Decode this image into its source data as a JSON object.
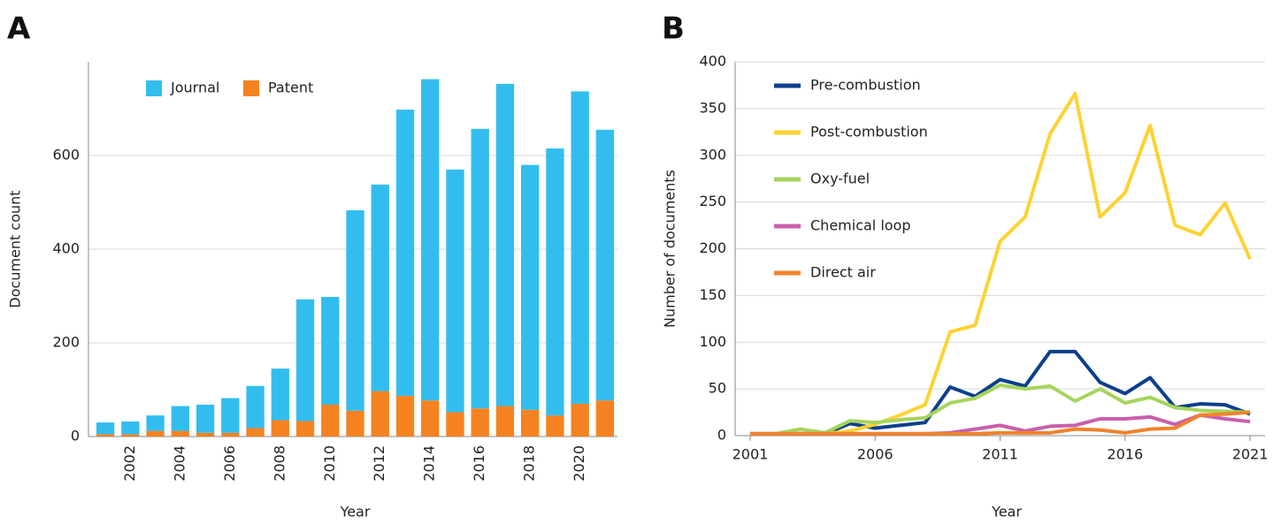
{
  "chart_data": [
    {
      "type": "bar",
      "panel": "A",
      "stacked": true,
      "xlabel": "Year",
      "ylabel": "Document count",
      "categories": [
        null,
        "2002",
        null,
        "2004",
        null,
        "2006",
        null,
        "2008",
        null,
        "2010",
        null,
        "2012",
        null,
        "2014",
        null,
        "2016",
        null,
        "2018",
        null,
        "2020",
        null
      ],
      "series": [
        {
          "name": "Journal",
          "color": "#33bdef",
          "values": [
            25,
            27,
            33,
            53,
            60,
            74,
            90,
            110,
            260,
            230,
            428,
            441,
            611,
            686,
            518,
            597,
            688,
            523,
            570,
            667,
            578
          ]
        },
        {
          "name": "Patent",
          "color": "#f58220",
          "values": [
            5,
            5,
            12,
            12,
            8,
            8,
            18,
            35,
            33,
            68,
            55,
            97,
            87,
            77,
            52,
            60,
            65,
            57,
            45,
            70,
            77
          ]
        }
      ],
      "ylim": [
        0,
        800
      ],
      "yticks": [
        0,
        200,
        400,
        600
      ],
      "grid": true,
      "legend": "upper left"
    },
    {
      "type": "line",
      "panel": "B",
      "xlabel": "Year",
      "ylabel": "Number of documents",
      "x": [
        2001,
        2002,
        2003,
        2004,
        2005,
        2006,
        2007,
        2008,
        2009,
        2010,
        2011,
        2012,
        2013,
        2014,
        2015,
        2016,
        2017,
        2018,
        2019,
        2020,
        2021
      ],
      "series": [
        {
          "name": "Pre-combustion",
          "color": "#0c3f8c",
          "values": [
            2,
            2,
            2,
            2,
            13,
            8,
            11,
            14,
            52,
            42,
            60,
            53,
            90,
            90,
            57,
            45,
            62,
            30,
            34,
            33,
            23
          ]
        },
        {
          "name": "Post-combustion",
          "color": "#fdd233",
          "values": [
            2,
            2,
            2,
            2,
            5,
            12,
            22,
            33,
            111,
            118,
            208,
            234,
            323,
            366,
            234,
            260,
            332,
            225,
            215,
            249,
            189
          ]
        },
        {
          "name": "Oxy-fuel",
          "color": "#a6d45c",
          "values": [
            2,
            2,
            7,
            3,
            16,
            14,
            17,
            19,
            35,
            40,
            54,
            50,
            53,
            37,
            50,
            35,
            41,
            30,
            27,
            26,
            25
          ]
        },
        {
          "name": "Chemical loop",
          "color": "#c95fac",
          "values": [
            2,
            2,
            2,
            2,
            2,
            2,
            2,
            2,
            3,
            7,
            11,
            5,
            10,
            11,
            18,
            18,
            20,
            12,
            22,
            18,
            15
          ]
        },
        {
          "name": "Direct air",
          "color": "#f0822a",
          "values": [
            2,
            2,
            2,
            2,
            2,
            2,
            2,
            2,
            2,
            2,
            3,
            3,
            3,
            7,
            6,
            3,
            7,
            8,
            22,
            23,
            25
          ]
        }
      ],
      "xlim": [
        2000.4,
        2021.6
      ],
      "xticks": [
        2001,
        2006,
        2011,
        2016,
        2021
      ],
      "ylim": [
        0,
        400
      ],
      "yticks": [
        0,
        50,
        100,
        150,
        200,
        250,
        300,
        350,
        400
      ],
      "grid": true,
      "legend": "upper left"
    }
  ]
}
